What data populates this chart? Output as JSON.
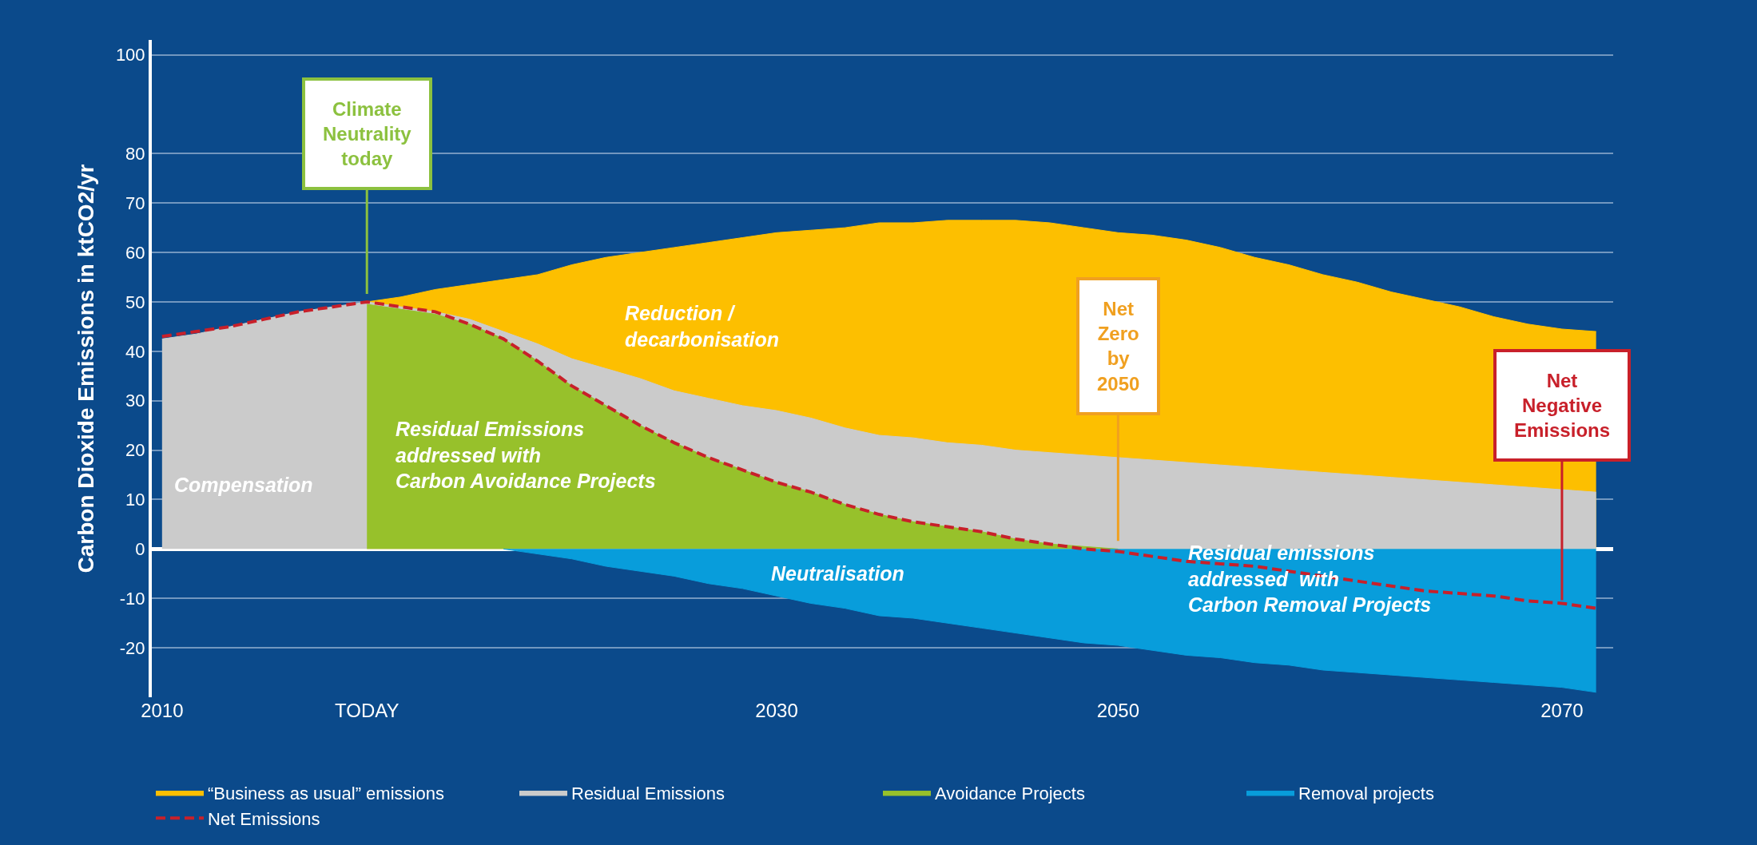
{
  "chart_data": {
    "type": "area",
    "ylabel": "Carbon Dioxide Emissions in ktCO2/yr",
    "categories": [
      "2010",
      null,
      null,
      null,
      null,
      null,
      "TODAY",
      null,
      null,
      null,
      null,
      null,
      null,
      null,
      null,
      null,
      null,
      null,
      "2030",
      null,
      null,
      null,
      null,
      null,
      null,
      null,
      null,
      null,
      "2050",
      null,
      null,
      null,
      null,
      null,
      null,
      null,
      null,
      null,
      null,
      null,
      null,
      "2070",
      null
    ],
    "series": [
      {
        "name": "“Business as usual” emissions",
        "color": "#fdbf00",
        "values": [
          null,
          null,
          null,
          null,
          null,
          null,
          50,
          51,
          52.5,
          53.5,
          54.5,
          55.5,
          57.5,
          59,
          60,
          61,
          62,
          63,
          64,
          64.5,
          65,
          66,
          66,
          66.5,
          66.5,
          66.5,
          66,
          65,
          64,
          63.5,
          62.5,
          61,
          59,
          57.5,
          55.5,
          54,
          52,
          50.5,
          49,
          47,
          45.5,
          44.5,
          44
        ]
      },
      {
        "name": "Residual Emissions",
        "color": "#cbcbcb",
        "values": [
          42.5,
          43.5,
          45,
          46.5,
          48,
          49,
          50,
          49,
          48,
          46.5,
          44,
          41.5,
          38.5,
          36.5,
          34.5,
          32,
          30.5,
          29,
          28,
          26.5,
          24.5,
          23,
          22.5,
          21.5,
          21,
          20,
          19.5,
          19,
          18.5,
          18,
          17.5,
          17,
          16.5,
          16,
          15.5,
          15,
          14.5,
          14,
          13.5,
          13,
          12.5,
          12,
          11.5
        ]
      },
      {
        "name": "Avoidance Projects",
        "color": "#97c12b",
        "values": [
          null,
          null,
          null,
          null,
          null,
          null,
          49.5,
          48.5,
          47.5,
          45.5,
          42.5,
          38,
          33,
          29,
          25,
          21.5,
          18.5,
          16,
          13.5,
          11.5,
          9,
          7,
          5.5,
          4.5,
          3.5,
          2,
          1,
          0.5,
          0,
          null,
          null,
          null,
          null,
          null,
          null,
          null,
          null,
          null,
          null,
          null,
          null,
          null,
          null
        ]
      },
      {
        "name": "Removal projects",
        "color": "#089ddb",
        "values": [
          null,
          null,
          null,
          null,
          null,
          null,
          null,
          null,
          null,
          null,
          0,
          -1,
          -2,
          -3.5,
          -4.5,
          -5.5,
          -7,
          -8,
          -9.5,
          -11,
          -12,
          -13.5,
          -14,
          -15,
          -16,
          -17,
          -18,
          -19,
          -19.5,
          -20.5,
          -21.5,
          -22,
          -23,
          -23.5,
          -24.5,
          -25,
          -25.5,
          -26,
          -26.5,
          -27,
          -27.5,
          -28,
          -29
        ]
      },
      {
        "name": "Net Emissions",
        "type": "line",
        "line_style": "dashed",
        "color": "#c8202a",
        "values": [
          43,
          44,
          45,
          46.5,
          48,
          49,
          50,
          49,
          48,
          45.5,
          42.5,
          38,
          33,
          29,
          25,
          21.5,
          18.5,
          16,
          13.5,
          11.5,
          9,
          7,
          5.5,
          4.5,
          3.5,
          2,
          1,
          0,
          -0.5,
          -1.5,
          -2.5,
          -3,
          -3.5,
          -4.5,
          -5.5,
          -6.5,
          -7.5,
          -8.5,
          -9,
          -9.5,
          -10.5,
          -11,
          -12
        ]
      }
    ],
    "ylim": [
      -30,
      103
    ],
    "yticks": [
      100,
      80,
      70,
      60,
      50,
      40,
      30,
      20,
      10,
      0,
      -10,
      -20
    ],
    "grid": "y",
    "legend": "bottom",
    "marker": "none",
    "annotations": [
      {
        "text": "Climate\nNeutrality\ntoday",
        "x": "TODAY",
        "y": 50
      },
      {
        "text": "Net\nZero\nby\n2050",
        "x": "2050",
        "y": 0
      },
      {
        "text": "Net\nNegative\nEmissions",
        "x": "2070",
        "y": -12
      },
      "Reduction /\ndecarbonisation",
      "Compensation",
      "Residual Emissions\naddressed with\nCarbon Avoidance Projects",
      "Neutralisation",
      "Residual emissions\naddressed  with\nCarbon Removal Projects"
    ]
  }
}
